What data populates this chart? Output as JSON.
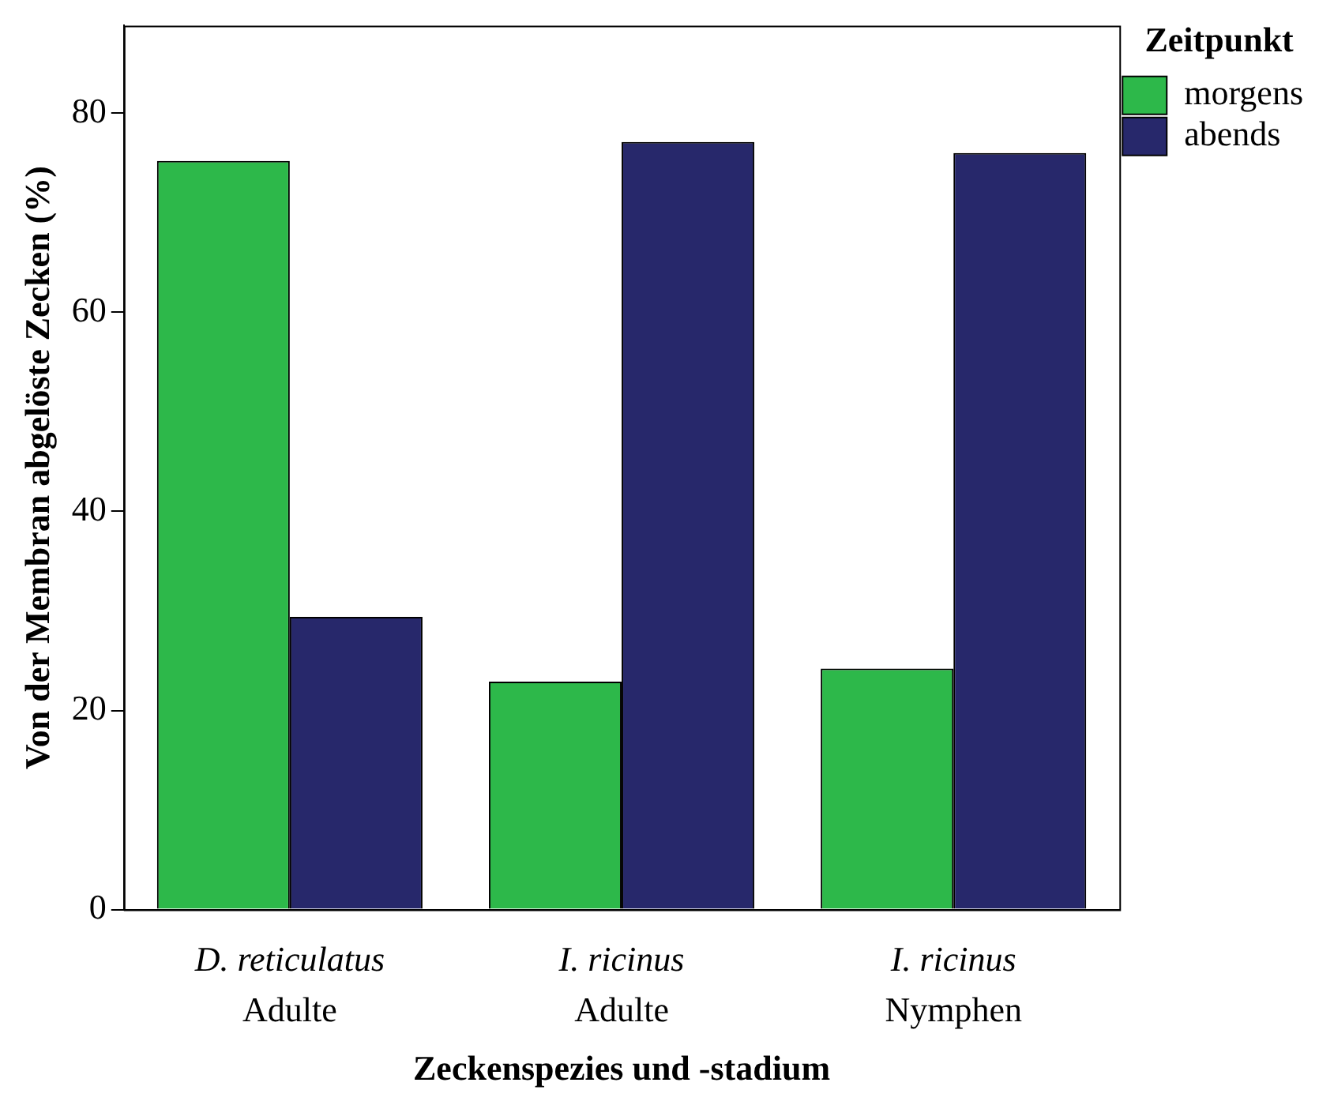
{
  "chart_data": {
    "type": "bar",
    "xlabel": "Zeckenspezies und -stadium",
    "ylabel": "Von der Membran abgelöste Zecken (%)",
    "legend_title": "Zeitpunkt",
    "categories": [
      "D. reticulatus\nAdulte",
      "I. ricinus\nAdulte",
      "I. ricinus\nNymphen"
    ],
    "series": [
      {
        "name": "morgens",
        "color": "#2db84a",
        "values": [
          75.2,
          22.9,
          24.2
        ]
      },
      {
        "name": "abends",
        "color": "#27286b",
        "values": [
          29.4,
          77.1,
          76.0
        ]
      }
    ],
    "ylim": [
      0,
      88.8
    ],
    "yticks": [
      0,
      20,
      40,
      60,
      80
    ],
    "grid": false,
    "legend": "top right"
  }
}
